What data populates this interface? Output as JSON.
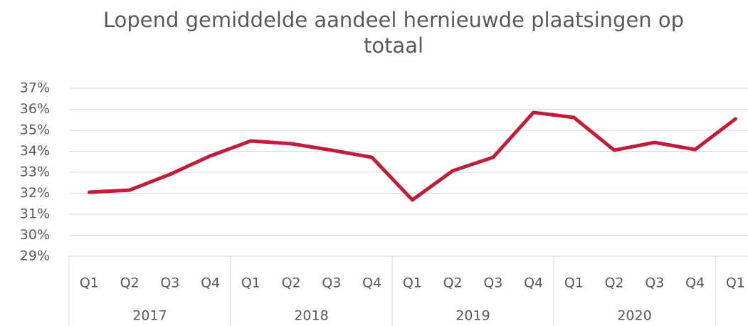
{
  "chart_data": {
    "type": "line",
    "title": "Lopend gemiddelde aandeel hernieuwde plaatsingen op totaal",
    "categories": [
      "Q1",
      "Q2",
      "Q3",
      "Q4",
      "Q1",
      "Q2",
      "Q3",
      "Q4",
      "Q1",
      "Q2",
      "Q3",
      "Q4",
      "Q1",
      "Q2",
      "Q3",
      "Q4",
      "Q1"
    ],
    "year_labels": [
      "2017",
      "2018",
      "2019",
      "2020"
    ],
    "series": [
      {
        "color": "#be1e3c",
        "values": [
          32.05,
          32.15,
          32.9,
          33.78,
          34.49,
          34.36,
          34.05,
          33.71,
          31.68,
          33.07,
          33.71,
          35.85,
          35.61,
          34.05,
          34.42,
          34.08,
          35.54
        ]
      }
    ],
    "ylim": [
      29,
      37
    ],
    "yticks": [
      {
        "value": 29,
        "label": "29%"
      },
      {
        "value": 30,
        "label": "30%"
      },
      {
        "value": 31,
        "label": "31%"
      },
      {
        "value": 32,
        "label": "32%"
      },
      {
        "value": 33,
        "label": "33%"
      },
      {
        "value": 34,
        "label": "34%"
      },
      {
        "value": 35,
        "label": "35%"
      },
      {
        "value": 36,
        "label": "36%"
      },
      {
        "value": 37,
        "label": "37%"
      }
    ],
    "grid": true
  }
}
